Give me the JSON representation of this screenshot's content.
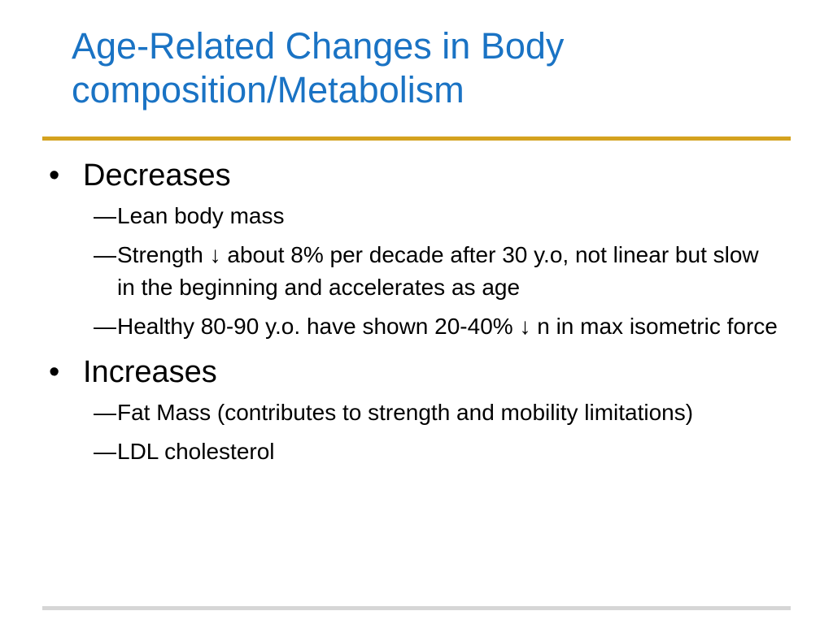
{
  "title": {
    "line1": "Age-Related Changes in Body",
    "line2": "composition/Metabolism"
  },
  "bullet_glyph": "•",
  "dash_glyph": "―",
  "sections": [
    {
      "label": "Decreases",
      "items": [
        "Lean body mass",
        "Strength ↓ about 8% per decade after 30 y.o, not linear but slow in the beginning and accelerates as age",
        "Healthy 80-90 y.o. have shown 20-40% ↓ n in max isometric force"
      ]
    },
    {
      "label": "Increases",
      "items": [
        "Fat Mass (contributes to strength and mobility limitations)",
        "LDL cholesterol"
      ]
    }
  ]
}
